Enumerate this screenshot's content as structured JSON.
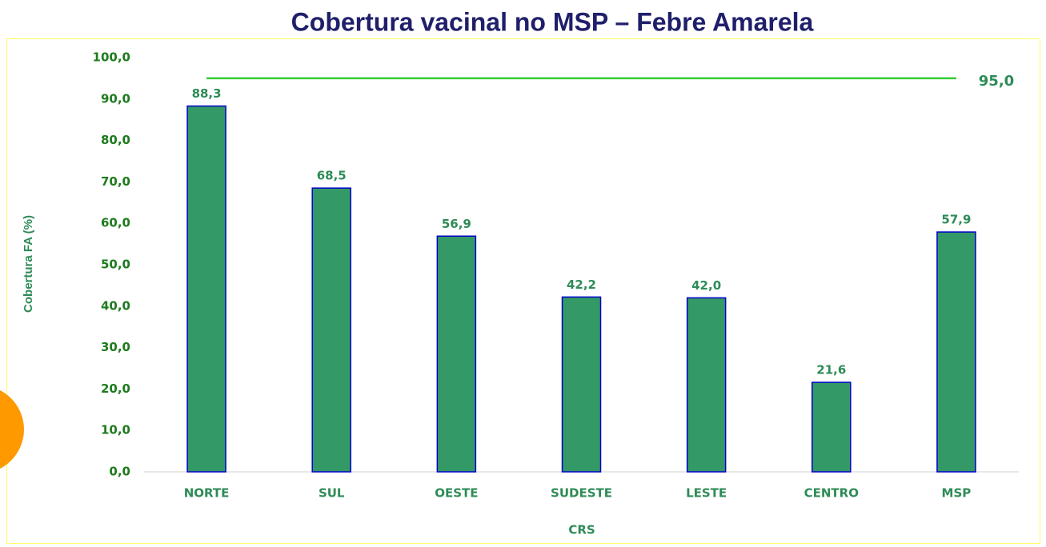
{
  "chart_data": {
    "type": "bar",
    "title": "Cobertura vacinal no MSP – Febre Amarela",
    "x_label": "CRS",
    "y_label": "Cobertura FA (%)",
    "categories": [
      "NORTE",
      "SUL",
      "OESTE",
      "SUDESTE",
      "LESTE",
      "CENTRO",
      "MSP"
    ],
    "values": [
      88.3,
      68.5,
      56.9,
      42.2,
      42.0,
      21.6,
      57.9
    ],
    "value_labels": [
      "88,3",
      "68,5",
      "56,9",
      "42,2",
      "42,0",
      "21,6",
      "57,9"
    ],
    "color": "#339966",
    "edge_color": "#0000cc",
    "ylim": [
      0,
      100
    ],
    "yticks": [
      {
        "value": 0,
        "label": "0,0"
      },
      {
        "value": 10,
        "label": "10,0"
      },
      {
        "value": 20,
        "label": "20,0"
      },
      {
        "value": 30,
        "label": "30,0"
      },
      {
        "value": 40,
        "label": "40,0"
      },
      {
        "value": 50,
        "label": "50,0"
      },
      {
        "value": 60,
        "label": "60,0"
      },
      {
        "value": 70,
        "label": "70,0"
      },
      {
        "value": 80,
        "label": "80,0"
      },
      {
        "value": 90,
        "label": "90,0"
      },
      {
        "value": 100,
        "label": "100,0"
      }
    ],
    "grid": false,
    "reference_line": {
      "value": 95,
      "label": "95,0",
      "color": "#33cc33"
    }
  }
}
